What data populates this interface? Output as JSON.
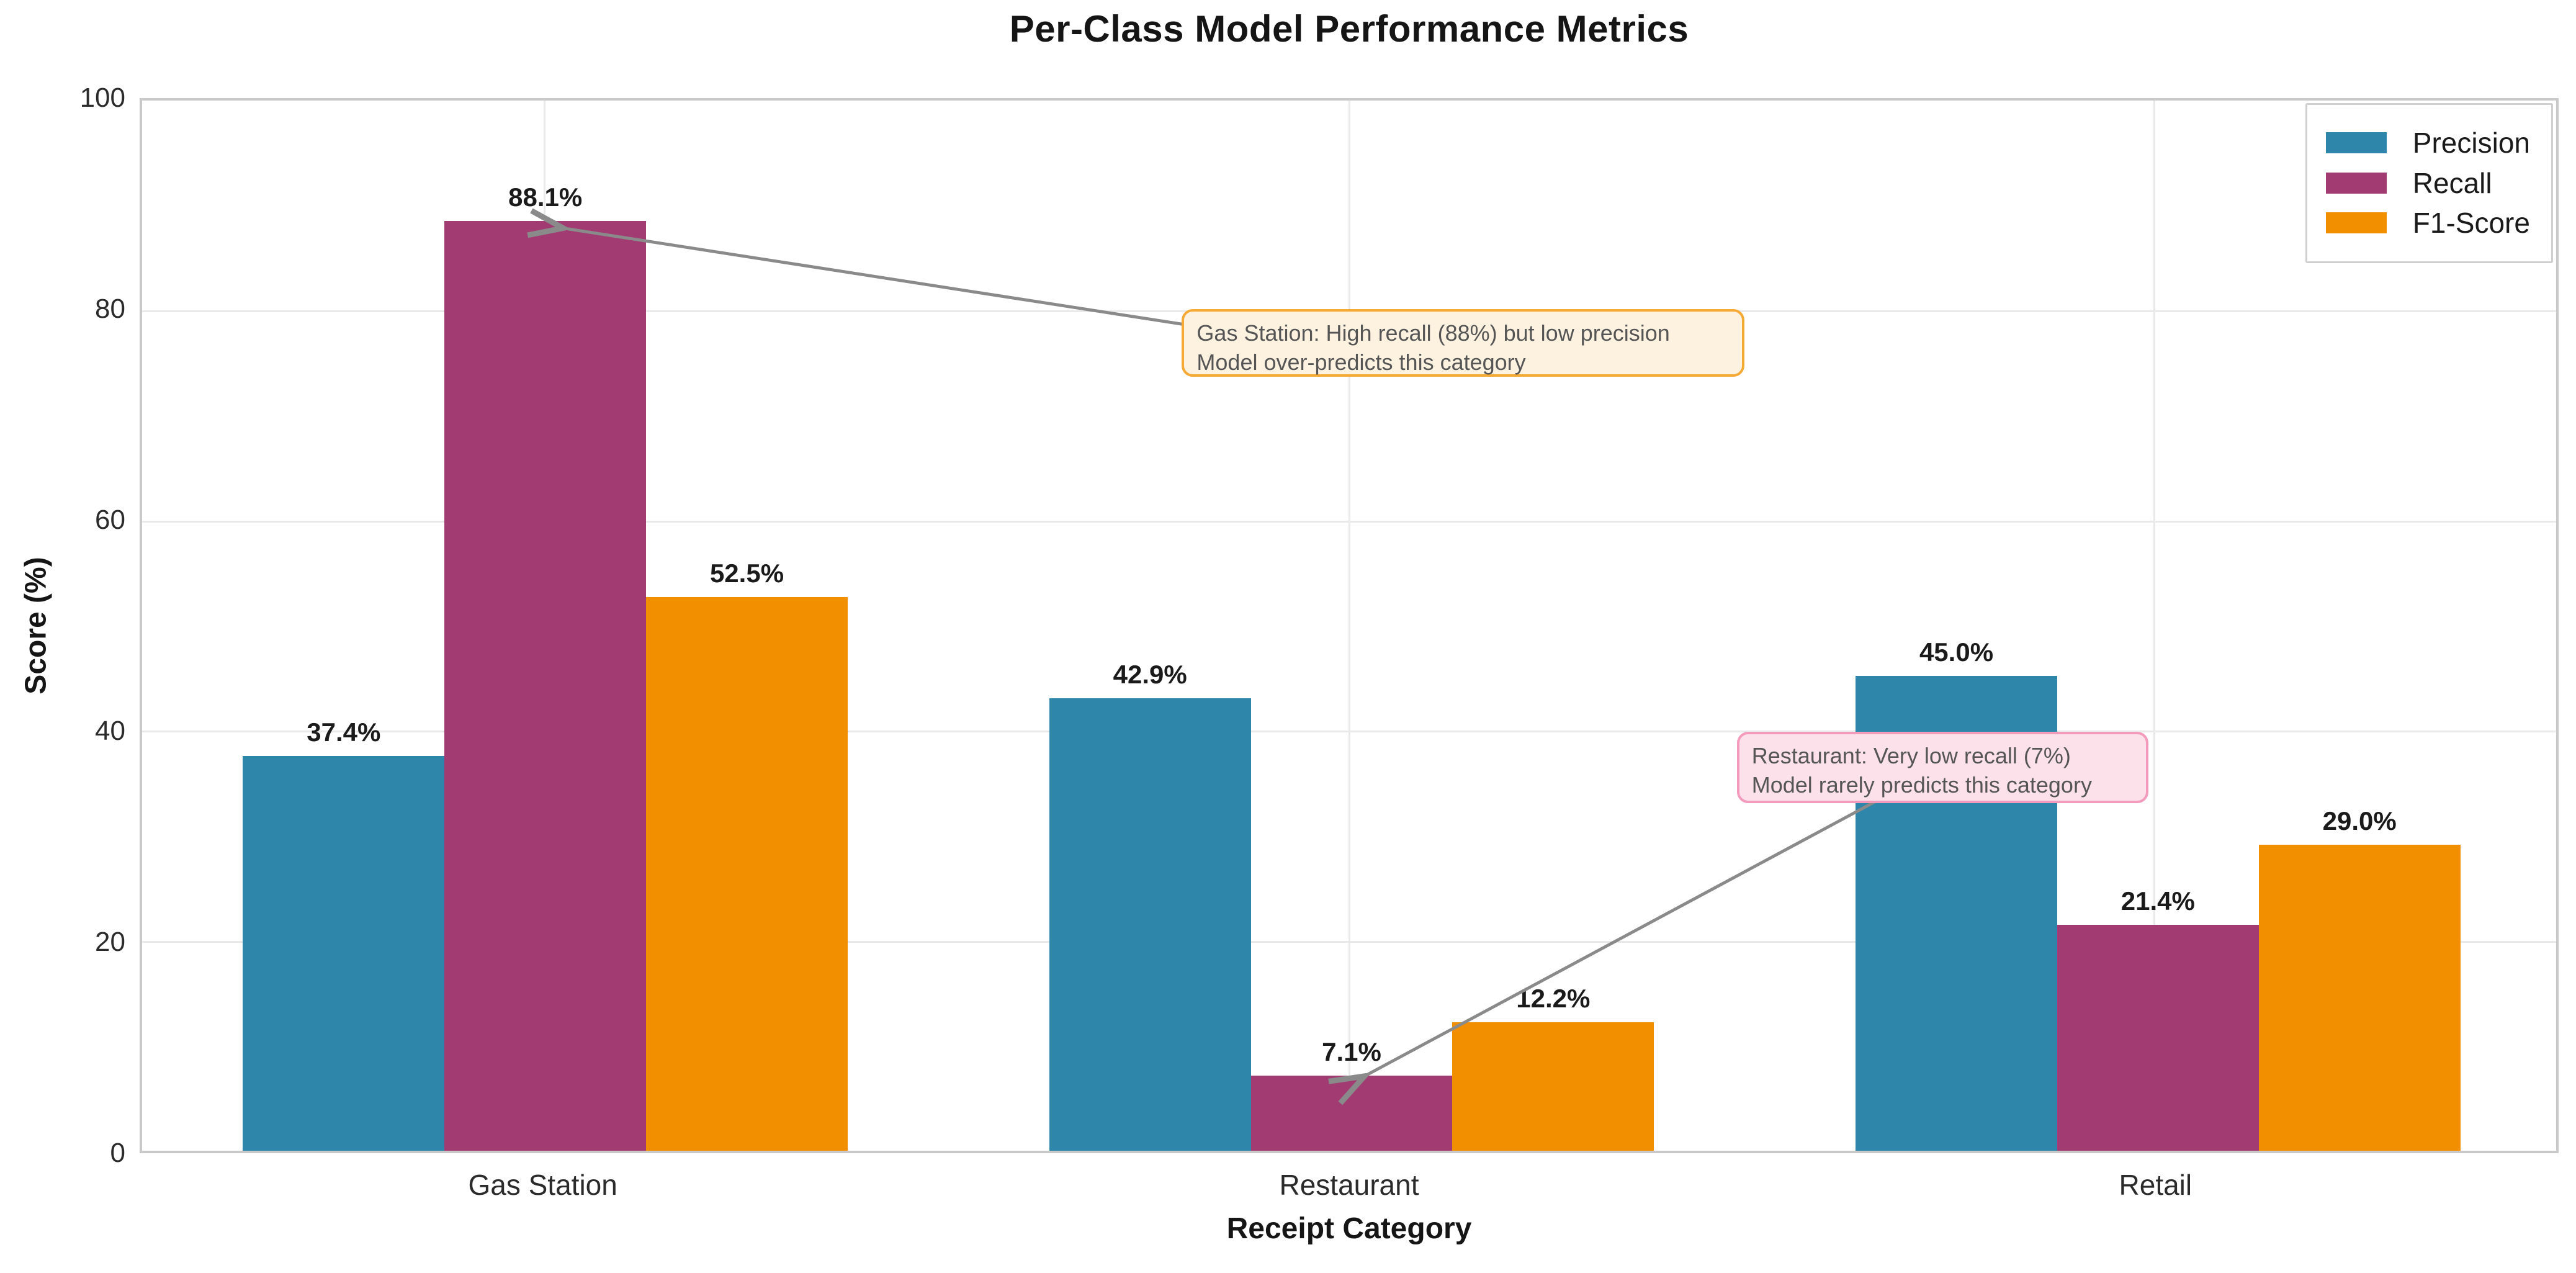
{
  "chart_data": {
    "type": "bar",
    "title": "Per-Class Model Performance Metrics",
    "xlabel": "Receipt Category",
    "ylabel": "Score (%)",
    "categories": [
      "Gas Station",
      "Restaurant",
      "Retail"
    ],
    "series": [
      {
        "name": "Precision",
        "color": "#2E86AB",
        "values": [
          37.4,
          42.9,
          45.0
        ]
      },
      {
        "name": "Recall",
        "color": "#A23B72",
        "values": [
          88.1,
          7.1,
          21.4
        ]
      },
      {
        "name": "F1-Score",
        "color": "#F18F01",
        "values": [
          52.5,
          12.2,
          29.0
        ]
      }
    ],
    "value_labels": [
      [
        "37.4%",
        "42.9%",
        "45.0%"
      ],
      [
        "88.1%",
        "7.1%",
        "21.4%"
      ],
      [
        "52.5%",
        "12.2%",
        "29.0%"
      ]
    ],
    "ylim": [
      0,
      100
    ],
    "yticks": [
      0,
      20,
      40,
      60,
      80,
      100
    ],
    "grid": true,
    "legend_position": "upper right",
    "annotations": [
      {
        "text_lines": [
          "Gas Station: High recall (88%) but low precision",
          "Model over-predicts this category"
        ],
        "bg_color": "#FDF1E0",
        "border_color": "#F7A935",
        "text_color": "#555555",
        "box": {
          "left_frac": 0.4307,
          "top_frac": 0.1988,
          "width_frac": 0.233,
          "height_frac": 0.064
        },
        "arrow": {
          "x1_frac": 0.4307,
          "y1_frac": 0.2129,
          "x2_frac": 0.1719,
          "y2_frac": 0.1206
        }
      },
      {
        "text_lines": [
          "Restaurant: Very low recall (7%)",
          "Model rarely predicts this category"
        ],
        "bg_color": "#FCE1EA",
        "border_color": "#F49BBB",
        "text_color": "#555555",
        "box": {
          "left_frac": 0.6606,
          "top_frac": 0.6012,
          "width_frac": 0.1706,
          "height_frac": 0.0676
        },
        "arrow": {
          "x1_frac": 0.7183,
          "y1_frac": 0.6671,
          "x2_frac": 0.5041,
          "y2_frac": 0.9318
        }
      }
    ],
    "arrow_color": "#8a8a8a",
    "grid_color": "#e9e9e9"
  }
}
